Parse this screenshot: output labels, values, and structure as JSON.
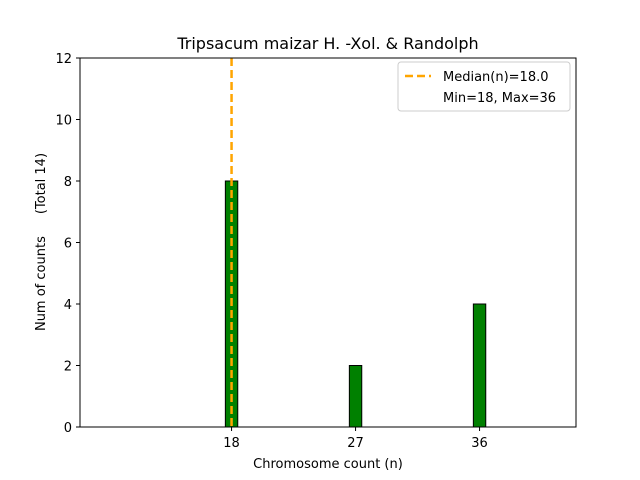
{
  "chart_data": {
    "type": "bar",
    "title": "Tripsacum maizar H. -Xol. & Randolph",
    "xlabel": "Chromosome count (n)",
    "ylabel": "Num of counts",
    "ylabel_suffix": "(Total 14)",
    "xlim": [
      7,
      43
    ],
    "ylim": [
      0,
      12
    ],
    "yticks": [
      0,
      2,
      4,
      6,
      8,
      10,
      12
    ],
    "xticks": [
      18,
      27,
      36
    ],
    "bar_width": 0.9,
    "bar_color": "#008000",
    "bar_edge_color": "#000000",
    "median_color": "#FFA500",
    "bars": [
      {
        "x": 18,
        "value": 8
      },
      {
        "x": 27,
        "value": 2
      },
      {
        "x": 36,
        "value": 4
      }
    ],
    "median": 18.0,
    "baseline_end": 39.5,
    "grid": false,
    "legend_position": "top-right",
    "legend": [
      {
        "label": "Median(n)=18.0",
        "style": "dashed-line"
      },
      {
        "label": "Min=18, Max=36",
        "style": "none"
      }
    ]
  }
}
